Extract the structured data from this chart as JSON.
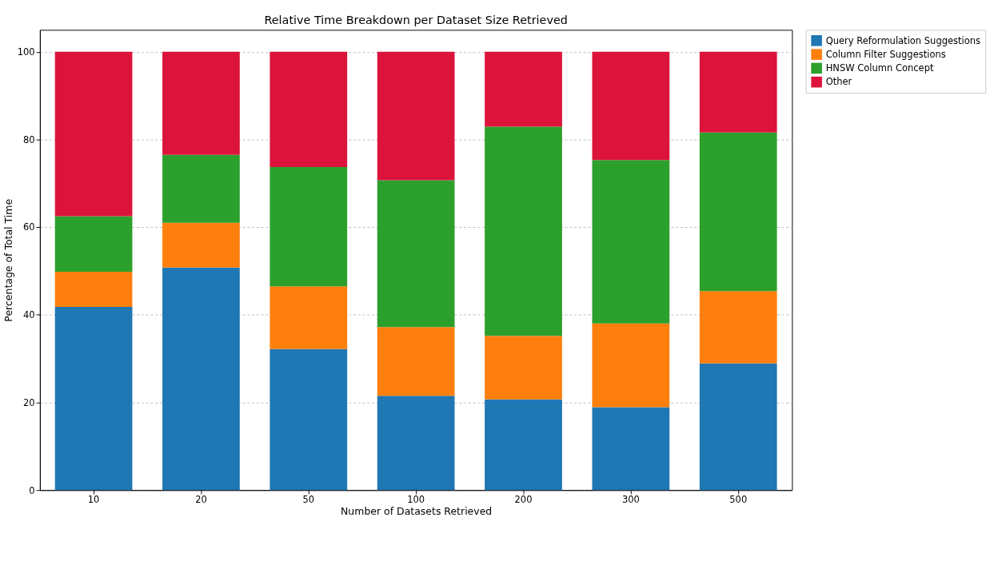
{
  "chart_data": {
    "type": "bar",
    "stacked": true,
    "title": "Relative Time Breakdown per Dataset Size Retrieved",
    "xlabel": "Number of Datasets Retrieved",
    "ylabel": "Percentage of Total Time",
    "categories": [
      "10",
      "20",
      "50",
      "100",
      "200",
      "300",
      "500"
    ],
    "series": [
      {
        "name": "Query Reformulation Suggestions",
        "color": "#1f77b4",
        "values": [
          41.8,
          50.8,
          32.2,
          21.5,
          20.7,
          18.9,
          28.9
        ]
      },
      {
        "name": "Column Filter Suggestions",
        "color": "#ff7f0e",
        "values": [
          8.0,
          10.2,
          14.3,
          15.7,
          14.5,
          19.1,
          16.5
        ]
      },
      {
        "name": "HNSW Column Concept",
        "color": "#2ca02c",
        "values": [
          12.7,
          15.5,
          27.2,
          33.5,
          47.7,
          37.3,
          36.2
        ]
      },
      {
        "name": "Other",
        "color": "#dc143c",
        "values": [
          37.5,
          23.5,
          26.3,
          29.3,
          17.1,
          24.7,
          18.4
        ]
      }
    ],
    "ylim": [
      0,
      105
    ],
    "yticks": [
      0,
      20,
      40,
      60,
      80,
      100
    ],
    "grid": "y",
    "legend": "right"
  }
}
